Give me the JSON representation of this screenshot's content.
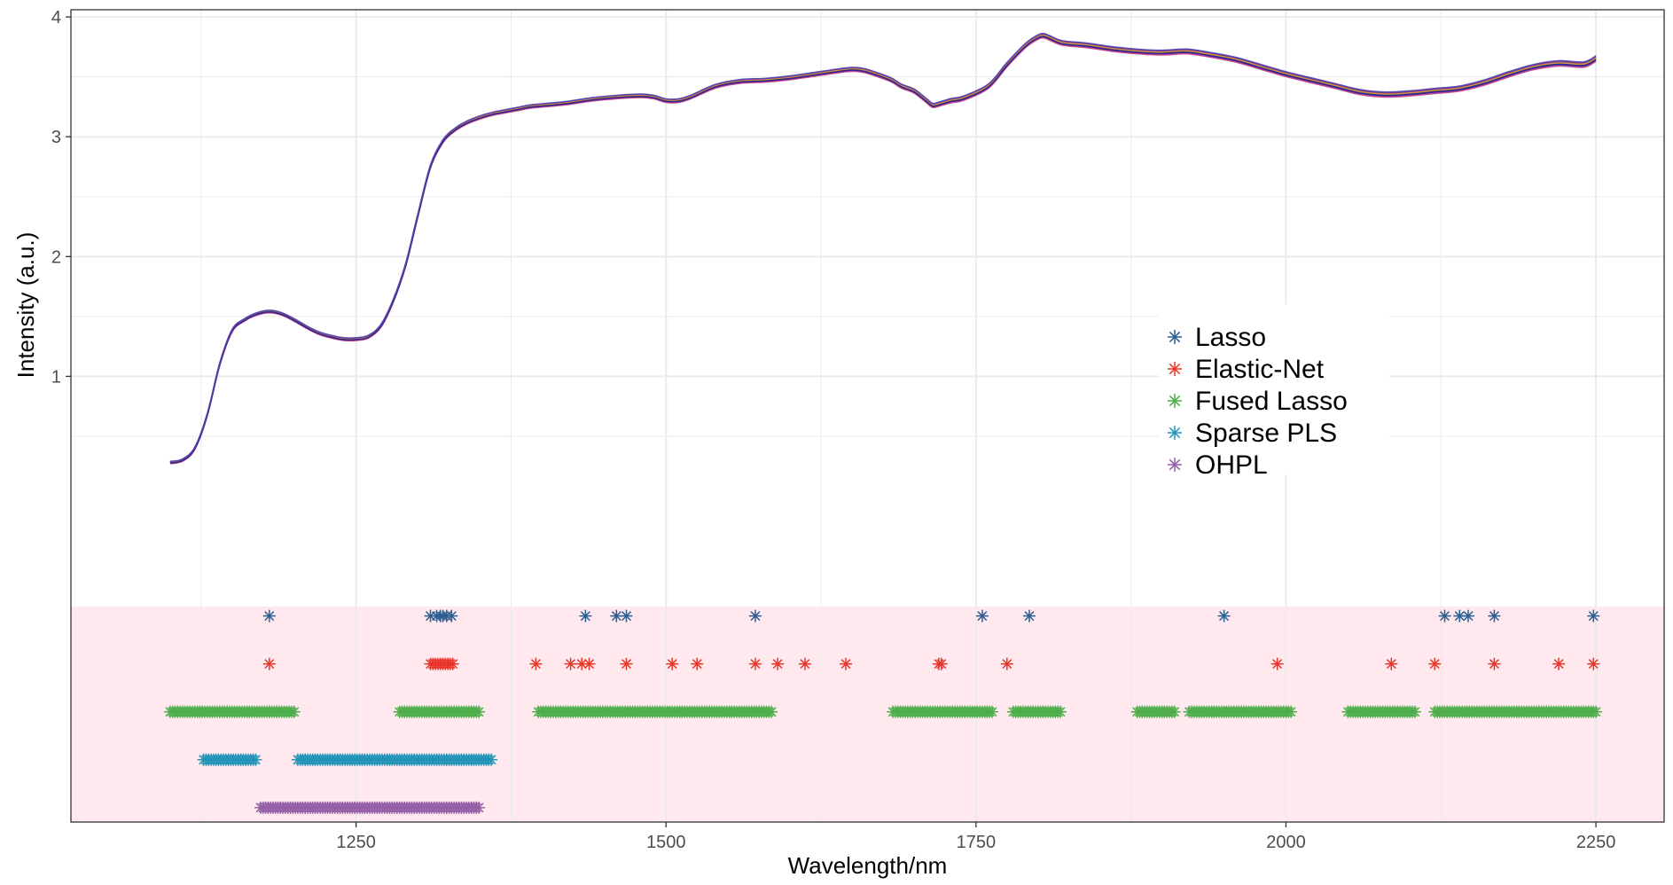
{
  "chart_data": {
    "type": "line",
    "xlabel": "Wavelength/nm",
    "ylabel": "Intensity (a.u.)",
    "x_ticks": [
      "1250",
      "1500",
      "1750",
      "2000",
      "2250"
    ],
    "y_ticks": [
      "1",
      "2",
      "3",
      "4"
    ],
    "xlim": [
      1020,
      2305
    ],
    "ylim": [
      -2.72,
      4.06
    ],
    "grid": true,
    "legend_position": "right",
    "spectrum": {
      "x": [
        1100,
        1110,
        1120,
        1130,
        1140,
        1150,
        1160,
        1170,
        1180,
        1190,
        1200,
        1210,
        1220,
        1230,
        1240,
        1250,
        1260,
        1270,
        1280,
        1290,
        1300,
        1310,
        1320,
        1330,
        1340,
        1350,
        1360,
        1370,
        1380,
        1390,
        1400,
        1420,
        1440,
        1460,
        1480,
        1490,
        1500,
        1510,
        1520,
        1540,
        1560,
        1580,
        1600,
        1620,
        1640,
        1650,
        1660,
        1680,
        1690,
        1700,
        1710,
        1715,
        1720,
        1730,
        1740,
        1760,
        1775,
        1790,
        1800,
        1805,
        1810,
        1820,
        1840,
        1860,
        1880,
        1900,
        1920,
        1940,
        1960,
        1980,
        2000,
        2020,
        2040,
        2060,
        2080,
        2100,
        2120,
        2140,
        2160,
        2180,
        2200,
        2220,
        2240,
        2250
      ],
      "y": [
        0.28,
        0.3,
        0.4,
        0.68,
        1.1,
        1.38,
        1.47,
        1.52,
        1.54,
        1.52,
        1.47,
        1.41,
        1.36,
        1.33,
        1.31,
        1.31,
        1.33,
        1.42,
        1.63,
        1.93,
        2.35,
        2.75,
        2.96,
        3.06,
        3.12,
        3.16,
        3.19,
        3.21,
        3.23,
        3.25,
        3.26,
        3.28,
        3.31,
        3.33,
        3.34,
        3.33,
        3.3,
        3.3,
        3.33,
        3.42,
        3.46,
        3.47,
        3.49,
        3.52,
        3.55,
        3.56,
        3.55,
        3.48,
        3.42,
        3.38,
        3.3,
        3.26,
        3.27,
        3.3,
        3.32,
        3.42,
        3.6,
        3.76,
        3.83,
        3.84,
        3.82,
        3.78,
        3.76,
        3.73,
        3.71,
        3.7,
        3.71,
        3.68,
        3.64,
        3.58,
        3.52,
        3.47,
        3.42,
        3.37,
        3.35,
        3.36,
        3.38,
        3.4,
        3.45,
        3.52,
        3.58,
        3.61,
        3.6,
        3.65
      ],
      "curve_colors": [
        "#1f1f8f",
        "#3a2fa0",
        "#4b3bbf",
        "#8a2f8a",
        "#c0398a",
        "#e0a030",
        "#28208a",
        "#5040b0"
      ],
      "offsets": [
        0,
        0.012,
        -0.012,
        0.018,
        -0.02,
        0.006,
        -0.006,
        0.025
      ]
    },
    "variable_selection": {
      "band_color": "#ffe8ee",
      "series": [
        {
          "name": "Lasso",
          "color": "#2b5f93",
          "level": -1.0,
          "x": [
            1180,
            1310,
            1315,
            1318,
            1320,
            1323,
            1327,
            1435,
            1460,
            1468,
            1572,
            1755,
            1793,
            1950,
            2128,
            2140,
            2147,
            2168,
            2248
          ]
        },
        {
          "name": "Elastic-Net",
          "color": "#e8362a",
          "level": -1.4,
          "x": [
            1180,
            1310,
            1312,
            1314,
            1316,
            1318,
            1320,
            1322,
            1324,
            1326,
            1328,
            1395,
            1423,
            1432,
            1438,
            1468,
            1505,
            1525,
            1572,
            1590,
            1612,
            1645,
            1720,
            1722,
            1775,
            1993,
            2085,
            2120,
            2168,
            2220,
            2248
          ]
        },
        {
          "name": "Fused Lasso",
          "color": "#4dad4a",
          "level": -1.8,
          "ranges": [
            [
              1100,
              1200
            ],
            [
              1285,
              1350
            ],
            [
              1397,
              1585
            ],
            [
              1683,
              1763
            ],
            [
              1780,
              1818
            ],
            [
              1880,
              1910
            ],
            [
              1922,
              2004
            ],
            [
              2050,
              2105
            ],
            [
              2120,
              2250
            ]
          ]
        },
        {
          "name": "Sparse PLS",
          "color": "#2394b8",
          "level": -2.2,
          "ranges": [
            [
              1127,
              1170
            ],
            [
              1203,
              1360
            ]
          ]
        },
        {
          "name": "OHPL",
          "color": "#9460a8",
          "level": -2.6,
          "ranges": [
            [
              1173,
              1350
            ]
          ]
        }
      ]
    }
  }
}
